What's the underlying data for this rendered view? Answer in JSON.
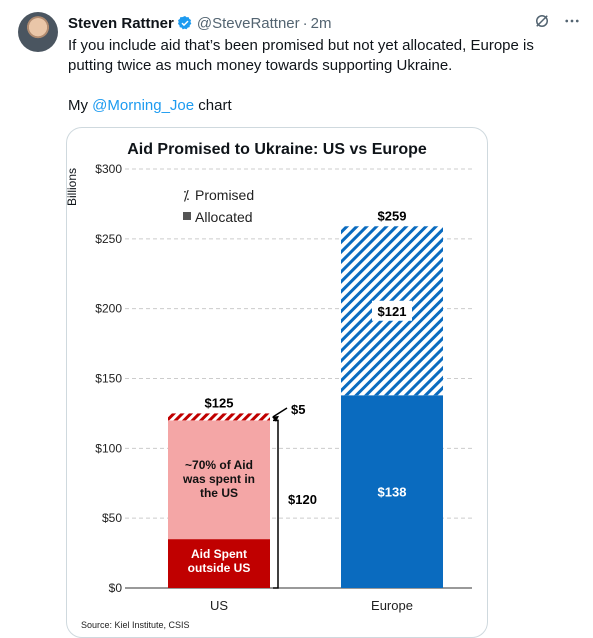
{
  "tweet": {
    "author_name": "Steven Rattner",
    "handle": "@SteveRattner",
    "separator": "·",
    "time": "2m",
    "line1": "If you include aid that’s been promised but not yet allocated, Europe is putting twice as much money towards supporting Ukraine.",
    "line2_prefix": "My ",
    "line2_mention": "@Morning_Joe",
    "line2_suffix": " chart",
    "icons": [
      "verified-badge-icon",
      "grok-icon",
      "more-icon"
    ],
    "colors": {
      "link": "#1d9bf0",
      "muted": "#536471"
    }
  },
  "chart_data": {
    "type": "bar",
    "stacked": true,
    "title": "Aid Promised to Ukraine: US vs Europe",
    "ylabel": "Billions",
    "ylim": [
      0,
      300
    ],
    "y_ticks": [
      "$0",
      "$50",
      "$100",
      "$150",
      "$200",
      "$250",
      "$300"
    ],
    "categories": [
      "US",
      "Europe"
    ],
    "legend": [
      "Promised",
      "Allocated"
    ],
    "grid": true,
    "bars": {
      "us": {
        "total_label": "$125",
        "total": 125,
        "segments": [
          {
            "label": "Aid Spent outside US",
            "value": 35,
            "color": "#c00000"
          },
          {
            "label": "~70% of Aid was spent in the US",
            "value": 85,
            "color": "#f4a6a6"
          },
          {
            "label": "Promised",
            "value": 5,
            "color": "#c00000",
            "hatched": true
          }
        ],
        "annotation_promised": "$5",
        "annotation_allocated": "$120",
        "label_spent_in_us_1": "~70% of Aid",
        "label_spent_in_us_2": "was spent in",
        "label_spent_in_us_3": "the US",
        "label_outside_1": "Aid Spent",
        "label_outside_2": "outside US"
      },
      "europe": {
        "total_label": "$259",
        "total": 259,
        "segments": [
          {
            "label": "$138",
            "value": 138,
            "color": "#0a6bbf"
          },
          {
            "label": "$121",
            "value": 121,
            "color": "#0a6bbf",
            "hatched": true
          }
        ]
      }
    },
    "source": "Source: Kiel Institute, CSIS"
  }
}
